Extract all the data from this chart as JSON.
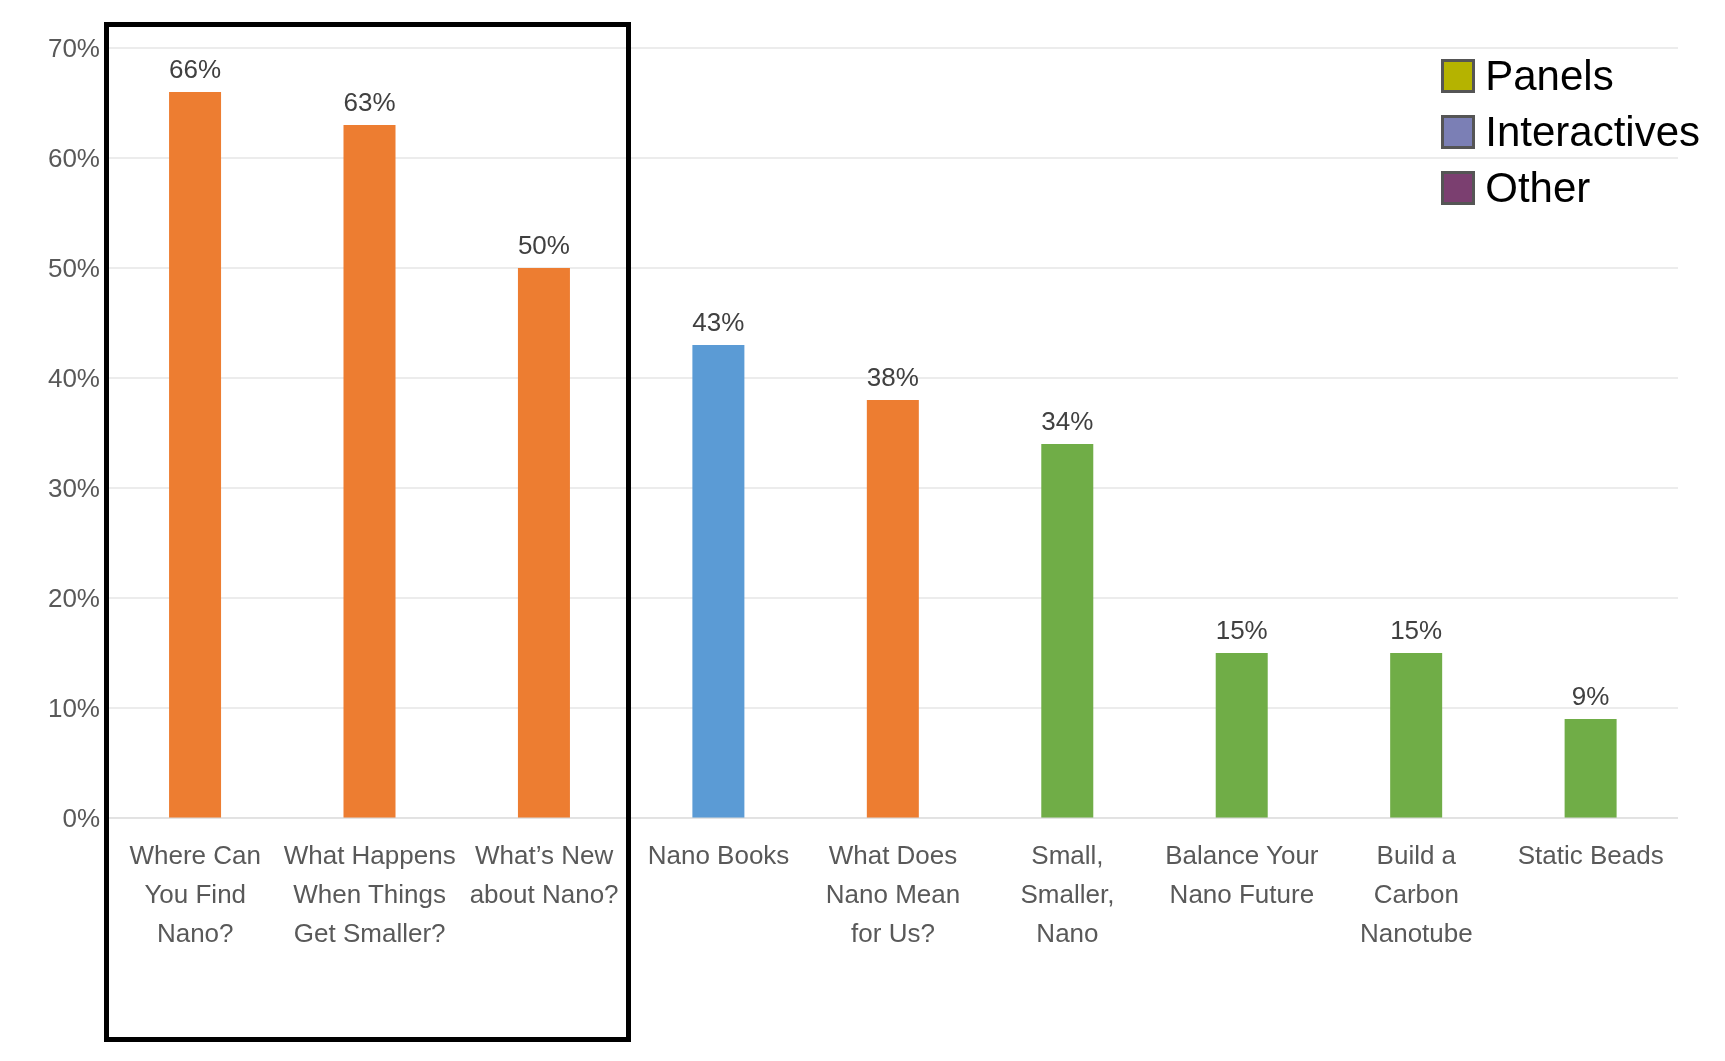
{
  "chart_data": {
    "type": "bar",
    "categories": [
      "Where Can You Find Nano?",
      "What Happens When Things Get Smaller?",
      "What’s New about Nano?",
      "Nano Books",
      "What Does Nano Mean for Us?",
      "Small, Smaller, Nano",
      "Balance Your Nano Future",
      "Build a Carbon Nanotube",
      "Static Beads"
    ],
    "values": [
      66,
      63,
      50,
      43,
      38,
      34,
      15,
      15,
      9
    ],
    "colors": [
      "#ed7d31",
      "#ed7d31",
      "#ed7d31",
      "#5b9bd5",
      "#ed7d31",
      "#70ad47",
      "#70ad47",
      "#70ad47",
      "#70ad47"
    ],
    "value_labels": [
      "66%",
      "63%",
      "50%",
      "43%",
      "38%",
      "34%",
      "15%",
      "15%",
      "9%"
    ],
    "ylim": [
      0,
      70
    ],
    "yticks": [
      {
        "value": 0,
        "label": "0%"
      },
      {
        "value": 10,
        "label": "10%"
      },
      {
        "value": 20,
        "label": "20%"
      },
      {
        "value": 30,
        "label": "30%"
      },
      {
        "value": 40,
        "label": "40%"
      },
      {
        "value": 50,
        "label": "50%"
      },
      {
        "value": 60,
        "label": "60%"
      },
      {
        "value": 70,
        "label": "70%"
      }
    ],
    "grid": "y",
    "annotations": [
      "Panels",
      "Interactives",
      "Other"
    ]
  }
}
